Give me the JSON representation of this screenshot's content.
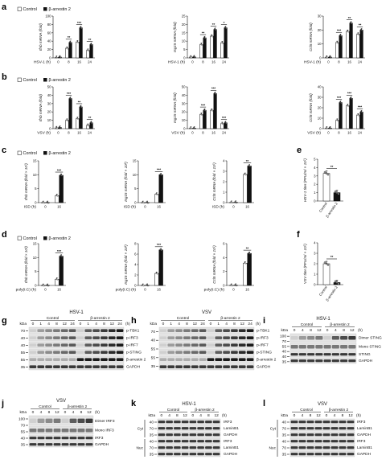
{
  "panels": {
    "a": "a",
    "b": "b",
    "c": "c",
    "d": "d",
    "e": "e",
    "f": "f",
    "g": "g",
    "h": "h",
    "i": "i",
    "j": "j",
    "k": "k",
    "l": "l"
  },
  "legend": {
    "control": "Control",
    "treated": "β-arrestin 2"
  },
  "colors": {
    "control": "#ffffff",
    "treated": "#111111"
  },
  "chart_data": [
    {
      "panel": "a",
      "type": "line",
      "id": "a1",
      "xlabel": "HSV-1 (h)",
      "ylabel": "Ifnb mRNA (fold)",
      "x": [
        "0",
        "8",
        "16",
        "24"
      ],
      "ylim": [
        0,
        100
      ],
      "yticks": [
        "0",
        "20",
        "40",
        "60",
        "80",
        "100"
      ],
      "series": [
        {
          "name": "Control",
          "values": [
            1,
            23,
            38,
            18
          ]
        },
        {
          "name": "β-arrestin 2",
          "values": [
            2,
            37,
            72,
            32
          ]
        }
      ],
      "stars": [
        "",
        "**",
        "***",
        "**"
      ]
    },
    {
      "panel": "a",
      "type": "line",
      "id": "a2",
      "xlabel": "HSV-1 (h)",
      "ylabel": "Isg15 mRNA (fold)",
      "x": [
        "0",
        "8",
        "16",
        "24"
      ],
      "ylim": [
        0,
        25
      ],
      "yticks": [
        "0",
        "5",
        "10",
        "15",
        "20",
        "25"
      ],
      "series": [
        {
          "name": "Control",
          "values": [
            0.5,
            8,
            13,
            9
          ]
        },
        {
          "name": "β-arrestin 2",
          "values": [
            0.6,
            12,
            17,
            18
          ]
        }
      ],
      "stars": [
        "",
        "**",
        "**",
        "*"
      ]
    },
    {
      "panel": "a",
      "type": "line",
      "id": "a3",
      "xlabel": "HSV-1 (h)",
      "ylabel": "Ccl5 mRNA (fold)",
      "x": [
        "0",
        "8",
        "16",
        "24"
      ],
      "ylim": [
        0,
        30
      ],
      "yticks": [
        "0",
        "10",
        "20",
        "30"
      ],
      "series": [
        {
          "name": "Control",
          "values": [
            0.5,
            11,
            19,
            17
          ]
        },
        {
          "name": "β-arrestin 2",
          "values": [
            0.6,
            16,
            25,
            20
          ]
        }
      ],
      "stars": [
        "",
        "***",
        "**",
        "**"
      ]
    },
    {
      "panel": "b",
      "type": "line",
      "id": "b1",
      "xlabel": "VSV (h)",
      "ylabel": "Ifnb mRNA (fold)",
      "x": [
        "0",
        "8",
        "16",
        "24"
      ],
      "ylim": [
        0,
        50
      ],
      "yticks": [
        "0",
        "10",
        "20",
        "30",
        "40",
        "50"
      ],
      "series": [
        {
          "name": "Control",
          "values": [
            1,
            10,
            12,
            4
          ]
        },
        {
          "name": "β-arrestin 2",
          "values": [
            1.5,
            36,
            26,
            7
          ]
        }
      ],
      "stars": [
        "",
        "***",
        "**",
        "**"
      ]
    },
    {
      "panel": "b",
      "type": "line",
      "id": "b2",
      "xlabel": "VSV (h)",
      "ylabel": "Isg15 mRNA (fold)",
      "x": [
        "0",
        "8",
        "16",
        "24"
      ],
      "ylim": [
        0,
        50
      ],
      "yticks": [
        "0",
        "10",
        "20",
        "30",
        "40",
        "50"
      ],
      "series": [
        {
          "name": "Control",
          "values": [
            0.5,
            17,
            22,
            6
          ]
        },
        {
          "name": "β-arrestin 2",
          "values": [
            0.6,
            22,
            42,
            7
          ]
        }
      ],
      "stars": [
        "",
        "***",
        "***",
        "***"
      ]
    },
    {
      "panel": "b",
      "type": "line",
      "id": "b3",
      "xlabel": "VSV (h)",
      "ylabel": "Ccl5 mRNA (fold)",
      "x": [
        "0",
        "8",
        "16",
        "24"
      ],
      "ylim": [
        0,
        40
      ],
      "yticks": [
        "0",
        "10",
        "20",
        "30",
        "40"
      ],
      "series": [
        {
          "name": "Control",
          "values": [
            0.5,
            8,
            22,
            13
          ]
        },
        {
          "name": "β-arrestin 2",
          "values": [
            0.6,
            25,
            29,
            16
          ]
        }
      ],
      "stars": [
        "",
        "***",
        "***",
        "***"
      ]
    },
    {
      "panel": "c",
      "type": "line",
      "id": "c1",
      "xlabel": "ISD (h)",
      "ylabel": "Ifnb mRNA (fold × 10³)",
      "x": [
        "0",
        "16"
      ],
      "ylim": [
        0,
        15
      ],
      "yticks": [
        "0",
        "5",
        "10",
        "15"
      ],
      "series": [
        {
          "name": "Control",
          "values": [
            0.02,
            2.5
          ]
        },
        {
          "name": "β-arrestin 2",
          "values": [
            0.03,
            9.8
          ]
        }
      ],
      "stars": [
        "",
        "***"
      ]
    },
    {
      "panel": "c",
      "type": "line",
      "id": "c2",
      "xlabel": "ISD (h)",
      "ylabel": "Isg15 mRNA (fold × 10²)",
      "x": [
        "0",
        "16"
      ],
      "ylim": [
        0,
        15
      ],
      "yticks": [
        "0",
        "5",
        "10",
        "15"
      ],
      "series": [
        {
          "name": "Control",
          "values": [
            0.02,
            3
          ]
        },
        {
          "name": "β-arrestin 2",
          "values": [
            0.03,
            10
          ]
        }
      ],
      "stars": [
        "",
        "***"
      ]
    },
    {
      "panel": "c",
      "type": "line",
      "id": "c3",
      "xlabel": "ISD (h)",
      "ylabel": "Ccl5 mRNA (fold × 10³)",
      "x": [
        "0",
        "16"
      ],
      "ylim": [
        0,
        4
      ],
      "yticks": [
        "0",
        "1",
        "2",
        "3",
        "4"
      ],
      "series": [
        {
          "name": "Control",
          "values": [
            0.02,
            2.7
          ]
        },
        {
          "name": "β-arrestin 2",
          "values": [
            0.03,
            3.5
          ]
        }
      ],
      "stars": [
        "",
        "**"
      ]
    },
    {
      "panel": "d",
      "type": "line",
      "id": "d1",
      "xlabel": "poly(I:C) (h)",
      "ylabel": "Ifnb mRNA (fold × 10²)",
      "x": [
        "0",
        "16"
      ],
      "ylim": [
        0,
        15
      ],
      "yticks": [
        "0",
        "5",
        "10",
        "15"
      ],
      "series": [
        {
          "name": "Control",
          "values": [
            0.02,
            2.2
          ]
        },
        {
          "name": "β-arrestin 2",
          "values": [
            0.03,
            10.5
          ]
        }
      ],
      "stars": [
        "",
        "***"
      ]
    },
    {
      "panel": "d",
      "type": "line",
      "id": "d2",
      "xlabel": "poly(I:C) (h)",
      "ylabel": "Isg15 mRNA (fold × 10²)",
      "x": [
        "0",
        "16"
      ],
      "ylim": [
        0,
        8
      ],
      "yticks": [
        "0",
        "2",
        "4",
        "6",
        "8"
      ],
      "series": [
        {
          "name": "Control",
          "values": [
            0.02,
            2.3
          ]
        },
        {
          "name": "β-arrestin 2",
          "values": [
            0.03,
            6.8
          ]
        }
      ],
      "stars": [
        "",
        "***"
      ]
    },
    {
      "panel": "d",
      "type": "line",
      "id": "d3",
      "xlabel": "poly(I:C) (h)",
      "ylabel": "Ccl5 mRNA (fold × 10³)",
      "x": [
        "0",
        "16"
      ],
      "ylim": [
        0,
        6
      ],
      "yticks": [
        "0",
        "2",
        "4",
        "6"
      ],
      "series": [
        {
          "name": "Control",
          "values": [
            0.02,
            3.2
          ]
        },
        {
          "name": "β-arrestin 2",
          "values": [
            0.03,
            4.6
          ]
        }
      ],
      "stars": [
        "",
        "**"
      ]
    },
    {
      "panel": "e",
      "type": "bar",
      "id": "e1",
      "ylabel": "HSV-1 titer (PFU/ml × 10⁷)",
      "categories": [
        "Control",
        "β-arrestin 2"
      ],
      "values": [
        3.3,
        1.0
      ],
      "ylim": [
        0,
        5
      ],
      "yticks": [
        "0",
        "1",
        "2",
        "3",
        "4",
        "5"
      ],
      "stars": "**"
    },
    {
      "panel": "f",
      "type": "bar",
      "id": "f1",
      "ylabel": "VSV titer (PFU/ml × 10⁷)",
      "categories": [
        "Control",
        "β-arrestin 2"
      ],
      "values": [
        2.0,
        0.2
      ],
      "ylim": [
        0,
        4
      ],
      "yticks": [
        "0",
        "1",
        "2",
        "3",
        "4"
      ],
      "stars": "**"
    }
  ],
  "blots": {
    "g": {
      "title": "HSV-1",
      "groups": [
        "Control",
        "β-arrestin 2"
      ],
      "lanes": [
        "0",
        "1",
        "4",
        "8",
        "12",
        "24",
        "0",
        "1",
        "4",
        "8",
        "12",
        "24"
      ],
      "unit": "(h)",
      "kda_label": "kDa",
      "kda": [
        "70",
        "40",
        "40",
        "55",
        "55",
        "35"
      ],
      "rows": [
        "p-TBK1",
        "p-IRF3",
        "p-IRF7",
        "p-STING",
        "β-arrestin 2",
        "GAPDH"
      ]
    },
    "h": {
      "title": "VSV",
      "groups": [
        "Control",
        "β-arrestin 2"
      ],
      "lanes": [
        "0",
        "1",
        "4",
        "8",
        "12",
        "24",
        "0",
        "1",
        "4",
        "8",
        "12",
        "24"
      ],
      "unit": "(h)",
      "kda_label": "kDa",
      "kda": [
        "70",
        "40",
        "55",
        "55",
        "35"
      ],
      "rows": [
        "p-TBK1",
        "p-IRF3",
        "p-IRF7",
        "p-STING",
        "β-arrestin 2",
        "GAPDH"
      ]
    },
    "i": {
      "title": "HSV-1",
      "groups": [
        "Control",
        "β-arrestin 2"
      ],
      "lanes": [
        "0",
        "4",
        "8",
        "12",
        "0",
        "4",
        "8",
        "12"
      ],
      "unit": "(h)",
      "kda_label": "kDa",
      "kda": [
        "100",
        "70",
        "55",
        "40",
        "40",
        "35"
      ],
      "rows": [
        "Dimer STING",
        "Mono STING",
        "STING",
        "GAPDH"
      ]
    },
    "j": {
      "title": "VSV",
      "groups": [
        "Control",
        "β-arrestin 2"
      ],
      "lanes": [
        "0",
        "4",
        "8",
        "12",
        "0",
        "4",
        "8",
        "12"
      ],
      "unit": "(h)",
      "kda_label": "kDa",
      "kda": [
        "100",
        "70",
        "55",
        "40",
        "35"
      ],
      "rows": [
        "Dimer IRF3",
        "Mono IRF3",
        "IRF3",
        "GAPDH"
      ]
    },
    "k": {
      "title": "HSV-1",
      "groups": [
        "Control",
        "β-arrestin 2"
      ],
      "lanes": [
        "0",
        "4",
        "8",
        "12",
        "0",
        "4",
        "8",
        "12"
      ],
      "unit": "(h)",
      "kda_label": "kDa",
      "kda": [
        "40",
        "70",
        "35",
        "40",
        "70",
        "35"
      ],
      "fractions": [
        "Cyt",
        "Nuc"
      ],
      "rows": [
        "IRF3",
        "LaminB1",
        "GAPDH",
        "IRF3",
        "LaminB1",
        "GAPDH"
      ]
    },
    "l": {
      "title": "VSV",
      "groups": [
        "Control",
        "β-arrestin 2"
      ],
      "lanes": [
        "0",
        "4",
        "8",
        "12",
        "0",
        "4",
        "8",
        "12"
      ],
      "unit": "(h)",
      "kda_label": "kDa",
      "kda": [
        "40",
        "70",
        "35",
        "40",
        "70",
        "35"
      ],
      "fractions": [
        "Cyt",
        "Nuc"
      ],
      "rows": [
        "IRF3",
        "LaminB1",
        "GAPDH",
        "IRF3",
        "LaminB1",
        "GAPDH"
      ]
    }
  }
}
